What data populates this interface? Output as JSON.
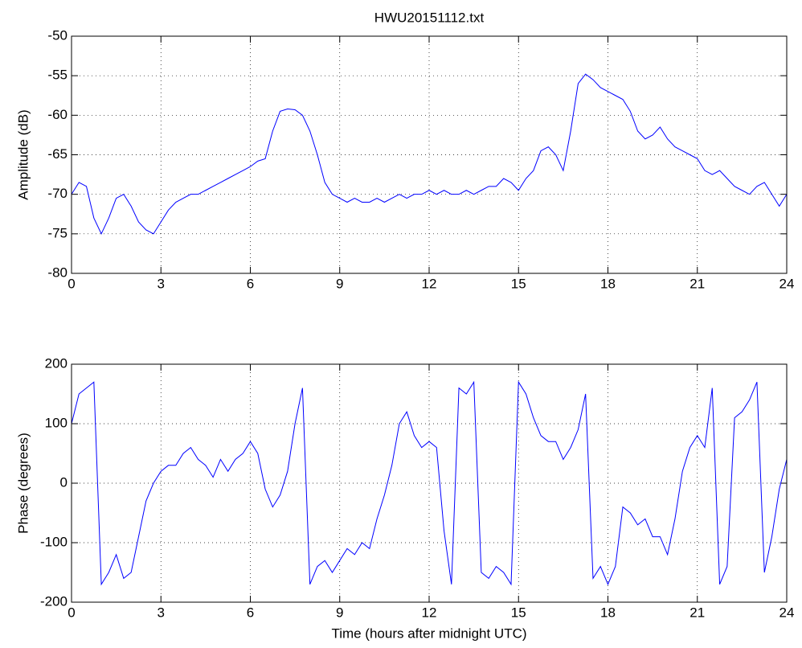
{
  "chart_data": [
    {
      "type": "line",
      "title": "HWU20151112.txt",
      "ylabel": "Amplitude (dB)",
      "color": "#0000ff",
      "grid": true,
      "x": [
        0,
        0.25,
        0.5,
        0.75,
        1,
        1.25,
        1.5,
        1.75,
        2,
        2.25,
        2.5,
        2.75,
        3,
        3.25,
        3.5,
        3.75,
        4,
        4.25,
        4.5,
        4.75,
        5,
        5.25,
        5.5,
        5.75,
        6,
        6.25,
        6.5,
        6.75,
        7,
        7.25,
        7.5,
        7.75,
        8,
        8.25,
        8.5,
        8.75,
        9,
        9.25,
        9.5,
        9.75,
        10,
        10.25,
        10.5,
        10.75,
        11,
        11.25,
        11.5,
        11.75,
        12,
        12.25,
        12.5,
        12.75,
        13,
        13.25,
        13.5,
        13.75,
        14,
        14.25,
        14.5,
        14.75,
        15,
        15.25,
        15.5,
        15.75,
        16,
        16.25,
        16.5,
        16.75,
        17,
        17.25,
        17.5,
        17.75,
        18,
        18.25,
        18.5,
        18.75,
        19,
        19.25,
        19.5,
        19.75,
        20,
        20.25,
        20.5,
        20.75,
        21,
        21.25,
        21.5,
        21.75,
        22,
        22.25,
        22.5,
        22.75,
        23,
        23.25,
        23.5,
        23.75,
        24
      ],
      "values": [
        -70,
        -68.5,
        -69,
        -73,
        -75,
        -73,
        -70.5,
        -70,
        -71.5,
        -73.5,
        -74.5,
        -75,
        -73.5,
        -72,
        -71,
        -70.5,
        -70,
        -70,
        -69.5,
        -69,
        -68.5,
        -68,
        -67.5,
        -67,
        -66.5,
        -65.8,
        -65.5,
        -62,
        -59.5,
        -59.2,
        -59.3,
        -60,
        -62,
        -65,
        -68.5,
        -70,
        -70.5,
        -71,
        -70.5,
        -71,
        -71,
        -70.5,
        -71,
        -70.5,
        -70,
        -70.5,
        -70,
        -70,
        -69.5,
        -70,
        -69.5,
        -70,
        -70,
        -69.5,
        -70,
        -69.5,
        -69,
        -69,
        -68,
        -68.5,
        -69.5,
        -68,
        -67,
        -64.5,
        -64,
        -65,
        -67,
        -62,
        -56,
        -54.8,
        -55.5,
        -56.5,
        -57,
        -57.5,
        -58,
        -59.5,
        -62,
        -63,
        -62.5,
        -61.5,
        -63,
        -64,
        -64.5,
        -65,
        -65.5,
        -67,
        -67.5,
        -67,
        -68,
        -69,
        -69.5,
        -70,
        -69,
        -68.5,
        -70,
        -71.5,
        -70
      ],
      "xlim": [
        0,
        24
      ],
      "xticks": [
        0,
        3,
        6,
        9,
        12,
        15,
        18,
        21,
        24
      ],
      "ylim": [
        -80,
        -50
      ],
      "yticks": [
        -80,
        -75,
        -70,
        -65,
        -60,
        -55,
        -50
      ]
    },
    {
      "type": "line",
      "ylabel": "Phase (degrees)",
      "xlabel": "Time (hours after midnight UTC)",
      "color": "#0000ff",
      "grid": true,
      "x": [
        0,
        0.25,
        0.5,
        0.75,
        1,
        1.25,
        1.5,
        1.75,
        2,
        2.25,
        2.5,
        2.75,
        3,
        3.25,
        3.5,
        3.75,
        4,
        4.25,
        4.5,
        4.75,
        5,
        5.25,
        5.5,
        5.75,
        6,
        6.25,
        6.5,
        6.75,
        7,
        7.25,
        7.5,
        7.75,
        8,
        8.25,
        8.5,
        8.75,
        9,
        9.25,
        9.5,
        9.75,
        10,
        10.25,
        10.5,
        10.75,
        11,
        11.25,
        11.5,
        11.75,
        12,
        12.25,
        12.5,
        12.75,
        13,
        13.25,
        13.5,
        13.75,
        14,
        14.25,
        14.5,
        14.75,
        15,
        15.25,
        15.5,
        15.75,
        16,
        16.25,
        16.5,
        16.75,
        17,
        17.25,
        17.5,
        17.75,
        18,
        18.25,
        18.5,
        18.75,
        19,
        19.25,
        19.5,
        19.75,
        20,
        20.25,
        20.5,
        20.75,
        21,
        21.25,
        21.5,
        21.75,
        22,
        22.25,
        22.5,
        22.75,
        23,
        23.25,
        23.5,
        23.75,
        24
      ],
      "values": [
        100,
        150,
        160,
        170,
        -170,
        -150,
        -120,
        -160,
        -150,
        -90,
        -30,
        0,
        20,
        30,
        30,
        50,
        60,
        40,
        30,
        10,
        40,
        20,
        40,
        50,
        70,
        50,
        -10,
        -40,
        -20,
        20,
        100,
        160,
        -170,
        -140,
        -130,
        -150,
        -130,
        -110,
        -120,
        -100,
        -110,
        -60,
        -20,
        30,
        100,
        120,
        80,
        60,
        70,
        60,
        -80,
        -170,
        160,
        150,
        170,
        -150,
        -160,
        -140,
        -150,
        -170,
        170,
        150,
        110,
        80,
        70,
        70,
        40,
        60,
        90,
        150,
        -160,
        -140,
        -170,
        -140,
        -40,
        -50,
        -70,
        -60,
        -90,
        -90,
        -120,
        -60,
        20,
        60,
        80,
        60,
        160,
        -170,
        -140,
        110,
        120,
        140,
        170,
        -150,
        -90,
        -10,
        40
      ],
      "xlim": [
        0,
        24
      ],
      "xticks": [
        0,
        3,
        6,
        9,
        12,
        15,
        18,
        21,
        24
      ],
      "ylim": [
        -200,
        200
      ],
      "yticks": [
        -200,
        -100,
        0,
        100,
        200
      ]
    }
  ]
}
